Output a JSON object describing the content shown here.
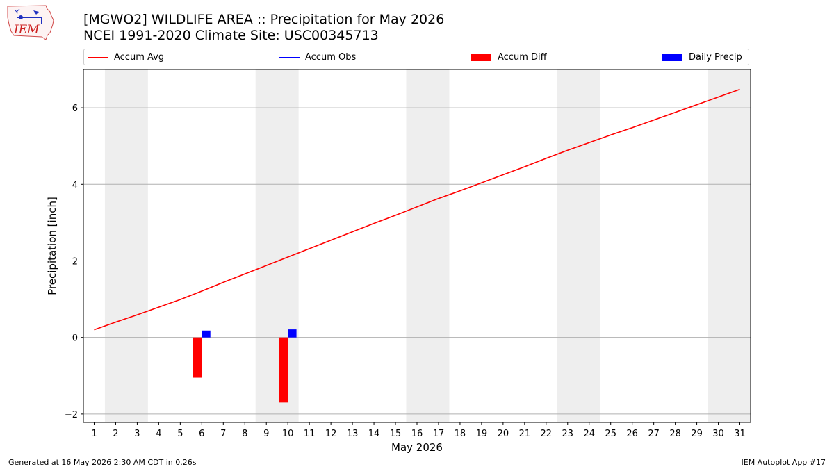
{
  "header": {
    "logo_text": "IEM",
    "title": "[MGWO2] WILDLIFE AREA :: Precipitation for May 2026",
    "subtitle": "NCEI 1991-2020 Climate Site: USC00345713"
  },
  "chart_data": {
    "type": "line",
    "xlabel": "May 2026",
    "ylabel": "Precipitation [inch]",
    "xlim": [
      0.5,
      31.5
    ],
    "ylim": [
      -2.22,
      7.0
    ],
    "x_ticks": [
      1,
      2,
      3,
      4,
      5,
      6,
      7,
      8,
      9,
      10,
      11,
      12,
      13,
      14,
      15,
      16,
      17,
      18,
      19,
      20,
      21,
      22,
      23,
      24,
      25,
      26,
      27,
      28,
      29,
      30,
      31
    ],
    "y_ticks": [
      -2,
      0,
      2,
      4,
      6
    ],
    "grid": "horizontal",
    "legend": "top",
    "weekend_shading": [
      [
        1.5,
        3.5
      ],
      [
        8.5,
        10.5
      ],
      [
        15.5,
        17.5
      ],
      [
        22.5,
        24.5
      ],
      [
        29.5,
        31.5
      ]
    ],
    "legend_entries": [
      "Accum Avg",
      "Accum Obs",
      "Accum Diff",
      "Daily Precip"
    ],
    "series": [
      {
        "name": "Accum Avg",
        "kind": "line",
        "color": "#ff0000",
        "x": [
          1,
          2,
          3,
          4,
          5,
          6,
          7,
          8,
          9,
          10,
          11,
          12,
          13,
          14,
          15,
          16,
          17,
          18,
          19,
          20,
          21,
          22,
          23,
          24,
          25,
          26,
          27,
          28,
          29,
          30,
          31
        ],
        "values": [
          0.2,
          0.4,
          0.59,
          0.79,
          0.99,
          1.21,
          1.44,
          1.66,
          1.88,
          2.1,
          2.32,
          2.54,
          2.76,
          2.98,
          3.19,
          3.41,
          3.63,
          3.83,
          4.04,
          4.25,
          4.46,
          4.68,
          4.89,
          5.09,
          5.29,
          5.48,
          5.68,
          5.88,
          6.08,
          6.28,
          6.48
        ]
      },
      {
        "name": "Accum Obs",
        "kind": "line",
        "color": "#0000ff",
        "x": [],
        "values": []
      },
      {
        "name": "Accum Diff",
        "kind": "bar",
        "color": "#ff0000",
        "x": [
          6,
          10
        ],
        "values": [
          -1.05,
          -1.7
        ]
      },
      {
        "name": "Daily Precip",
        "kind": "bar",
        "color": "#0000ff",
        "x": [
          6,
          10
        ],
        "values": [
          0.18,
          0.21
        ]
      }
    ]
  },
  "footer": {
    "left": "Generated at 16 May 2026 2:30 AM CDT in 0.26s",
    "right": "IEM Autoplot App #17"
  }
}
